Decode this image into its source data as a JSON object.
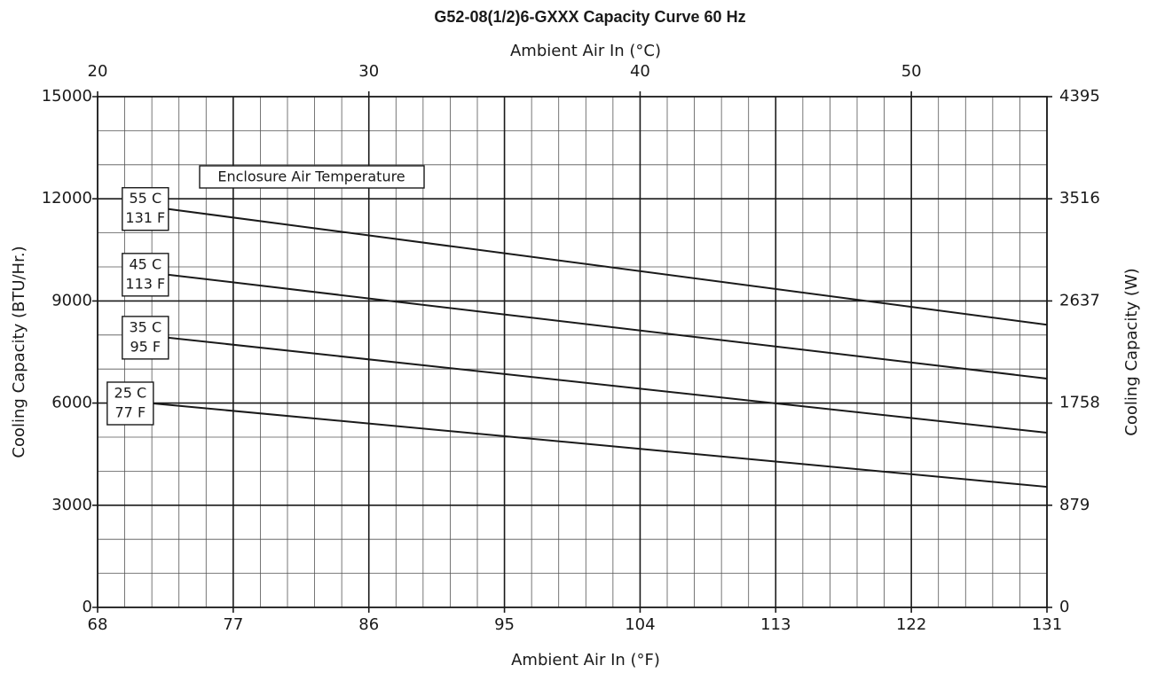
{
  "chart_data": {
    "type": "line",
    "title": "G52-08(1/2)6-GXXX Capacity Curve 60 Hz",
    "x_label": "Ambient Air In (°F)",
    "x2_label": "Ambient Air In (°C)",
    "y_label": "Cooling Capacity (BTU/Hr.)",
    "y2_label": "Cooling Capacity (W)",
    "legend_title": "Enclosure Air Temperature",
    "xlim": [
      68,
      131
    ],
    "xticks": [
      68,
      77,
      86,
      95,
      104,
      113,
      122,
      131
    ],
    "x2lim": [
      20,
      55
    ],
    "x2ticks": [
      20,
      30,
      40,
      50
    ],
    "x2minorticks": [
      21,
      22,
      23,
      24,
      26,
      27,
      28,
      29,
      31,
      32,
      33,
      34,
      36,
      37,
      38,
      39,
      41,
      42,
      43,
      44,
      46,
      47,
      48,
      49,
      51,
      52,
      53,
      54
    ],
    "ylim": [
      0,
      15000
    ],
    "yticks": [
      0,
      3000,
      6000,
      9000,
      12000,
      15000
    ],
    "yminorticks": [
      1000,
      2000,
      4000,
      5000,
      7000,
      8000,
      10000,
      11000,
      13000,
      14000
    ],
    "y2lim": [
      0,
      4395
    ],
    "y2ticks": [
      0,
      879,
      1758,
      2637,
      3516,
      4395
    ],
    "grid": true,
    "series": [
      {
        "name": [
          "55 C",
          "131 F"
        ],
        "color": "#1a1a1a",
        "x": [
          72.7,
          131
        ],
        "values": [
          11700,
          8300
        ]
      },
      {
        "name": [
          "45 C",
          "113 F"
        ],
        "color": "#1a1a1a",
        "x": [
          72.7,
          131
        ],
        "values": [
          9770,
          6720
        ]
      },
      {
        "name": [
          "35 C",
          "95 F"
        ],
        "color": "#1a1a1a",
        "x": [
          72.7,
          131
        ],
        "values": [
          7920,
          5130
        ]
      },
      {
        "name": [
          "25 C",
          "77 F"
        ],
        "color": "#1a1a1a",
        "x": [
          71.7,
          131
        ],
        "values": [
          5990,
          3540
        ]
      }
    ]
  }
}
